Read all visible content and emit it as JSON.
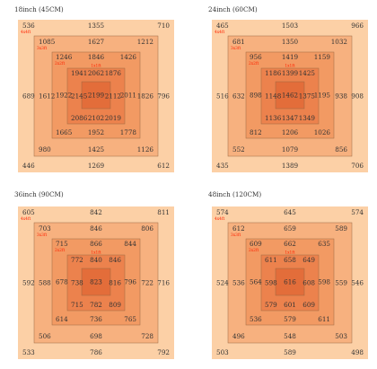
{
  "colors": {
    "ring1": "#fcd0a6",
    "ring2": "#f7b17f",
    "ring3": "#f29a63",
    "ring4": "#ec824d",
    "ring5": "#e36d3a",
    "line": "#9a6a45",
    "value": "#333333",
    "tag": "#ff2200"
  },
  "panels": [
    {
      "title": "18inch (45CM)",
      "ring_tags": [
        "4x4ft",
        "3x3ft",
        "2x2ft",
        "1x1ft"
      ],
      "rings": [
        {
          "tl": "536",
          "tm": "1355",
          "tr": "710",
          "ml": "689",
          "mr": "796",
          "bl": "446",
          "bm": "1269",
          "br": "612"
        },
        {
          "tl": "1085",
          "tm": "1627",
          "tr": "1212",
          "ml": "1612",
          "mr": "1826",
          "bl": "980",
          "bm": "1425",
          "br": "1126"
        },
        {
          "tl": "1246",
          "tm": "1846",
          "tr": "1426",
          "ml": "1922",
          "mr": "2011",
          "bl": "1665",
          "bm": "1952",
          "br": "1778"
        },
        {
          "tl": "1941",
          "tm": "2062",
          "tr": "1876",
          "ml": "2145",
          "mr": "2112",
          "bl": "2086",
          "bm": "2102",
          "br": "2019"
        },
        {
          "tl": "",
          "tm": "",
          "tr": "",
          "ml": "",
          "mr": "",
          "bl": "",
          "bm": "",
          "br": ""
        }
      ],
      "center": "2199"
    },
    {
      "title": "24inch (60CM)",
      "ring_tags": [
        "4x4ft",
        "3x3ft",
        "2x2ft",
        "1x1ft"
      ],
      "rings": [
        {
          "tl": "465",
          "tm": "1503",
          "tr": "966",
          "ml": "516",
          "mr": "908",
          "bl": "435",
          "bm": "1389",
          "br": "706"
        },
        {
          "tl": "681",
          "tm": "1350",
          "tr": "1032",
          "ml": "632",
          "mr": "938",
          "bl": "552",
          "bm": "1079",
          "br": "856"
        },
        {
          "tl": "956",
          "tm": "1419",
          "tr": "1159",
          "ml": "898",
          "mr": "1195",
          "bl": "812",
          "bm": "1206",
          "br": "1026"
        },
        {
          "tl": "1186",
          "tm": "1399",
          "tr": "1425",
          "ml": "1148",
          "mr": "1375",
          "bl": "1136",
          "bm": "1347",
          "br": "1349"
        },
        {
          "tl": "",
          "tm": "",
          "tr": "",
          "ml": "",
          "mr": "",
          "bl": "",
          "bm": "",
          "br": ""
        }
      ],
      "center": "1462"
    },
    {
      "title": "36inch (90CM)",
      "ring_tags": [
        "4x4ft",
        "3x3ft",
        "2x2ft",
        "1x1ft"
      ],
      "rings": [
        {
          "tl": "605",
          "tm": "842",
          "tr": "811",
          "ml": "592",
          "mr": "716",
          "bl": "533",
          "bm": "786",
          "br": "792"
        },
        {
          "tl": "703",
          "tm": "846",
          "tr": "806",
          "ml": "588",
          "mr": "722",
          "bl": "506",
          "bm": "698",
          "br": "728"
        },
        {
          "tl": "715",
          "tm": "866",
          "tr": "844",
          "ml": "678",
          "mr": "796",
          "bl": "614",
          "bm": "736",
          "br": "765"
        },
        {
          "tl": "772",
          "tm": "840",
          "tr": "846",
          "ml": "738",
          "mr": "816",
          "bl": "715",
          "bm": "782",
          "br": "809"
        },
        {
          "tl": "",
          "tm": "",
          "tr": "",
          "ml": "",
          "mr": "",
          "bl": "",
          "bm": "",
          "br": ""
        }
      ],
      "center": "823"
    },
    {
      "title": "48inch (120CM)",
      "ring_tags": [
        "4x4ft",
        "3x3ft",
        "2x2ft",
        "1x1ft"
      ],
      "rings": [
        {
          "tl": "574",
          "tm": "645",
          "tr": "574",
          "ml": "524",
          "mr": "546",
          "bl": "503",
          "bm": "589",
          "br": "498"
        },
        {
          "tl": "612",
          "tm": "659",
          "tr": "589",
          "ml": "536",
          "mr": "559",
          "bl": "496",
          "bm": "548",
          "br": "503"
        },
        {
          "tl": "609",
          "tm": "662",
          "tr": "635",
          "ml": "564",
          "mr": "598",
          "bl": "536",
          "bm": "579",
          "br": "611"
        },
        {
          "tl": "611",
          "tm": "658",
          "tr": "649",
          "ml": "598",
          "mr": "608",
          "bl": "579",
          "bm": "601",
          "br": "609"
        },
        {
          "tl": "",
          "tm": "",
          "tr": "",
          "ml": "",
          "mr": "",
          "bl": "",
          "bm": "",
          "br": ""
        }
      ],
      "center": "616"
    }
  ]
}
